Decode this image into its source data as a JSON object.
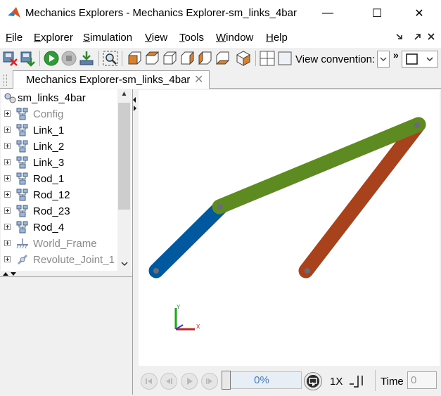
{
  "window": {
    "title": "Mechanics Explorers - Mechanics Explorer-sm_links_4bar",
    "minimize_glyph": "—",
    "maximize_glyph": "☐",
    "close_glyph": "✕"
  },
  "menu": {
    "items": [
      {
        "label": "File",
        "mnemonic": "F"
      },
      {
        "label": "Explorer",
        "mnemonic": "E"
      },
      {
        "label": "Simulation",
        "mnemonic": "S"
      },
      {
        "label": "View",
        "mnemonic": "V"
      },
      {
        "label": "Tools",
        "mnemonic": "T"
      },
      {
        "label": "Window",
        "mnemonic": "W"
      },
      {
        "label": "Help",
        "mnemonic": "H"
      }
    ]
  },
  "toolbar": {
    "view_convention_label": "View convention:",
    "overflow_glyph": "»"
  },
  "tab": {
    "label": "Mechanics Explorer-sm_links_4bar",
    "close_glyph": "✕"
  },
  "tree": {
    "root": "sm_links_4bar",
    "items": [
      {
        "label": "Config",
        "muted": true,
        "icon": "subsystem-icon"
      },
      {
        "label": "Link_1",
        "muted": false,
        "icon": "subsystem-icon"
      },
      {
        "label": "Link_2",
        "muted": false,
        "icon": "subsystem-icon"
      },
      {
        "label": "Link_3",
        "muted": false,
        "icon": "subsystem-icon"
      },
      {
        "label": "Rod_1",
        "muted": false,
        "icon": "subsystem-icon"
      },
      {
        "label": "Rod_12",
        "muted": false,
        "icon": "subsystem-icon"
      },
      {
        "label": "Rod_23",
        "muted": false,
        "icon": "subsystem-icon"
      },
      {
        "label": "Rod_4",
        "muted": false,
        "icon": "subsystem-icon"
      },
      {
        "label": "World_Frame",
        "muted": true,
        "icon": "ground-icon"
      },
      {
        "label": "Revolute_Joint_1",
        "muted": true,
        "icon": "joint-icon"
      }
    ]
  },
  "axes": {
    "x_label": "X",
    "y_label": "Y",
    "x_color": "#d41f1f",
    "y_color": "#1fa01f"
  },
  "links": {
    "blue": "#00599e",
    "green": "#5e8a22",
    "red": "#a8421c",
    "joint": "#6b6b78"
  },
  "playback": {
    "progress_label": "0%",
    "progress": 0,
    "rate_label": "1X",
    "time_label": "Time",
    "time_value": "0"
  }
}
